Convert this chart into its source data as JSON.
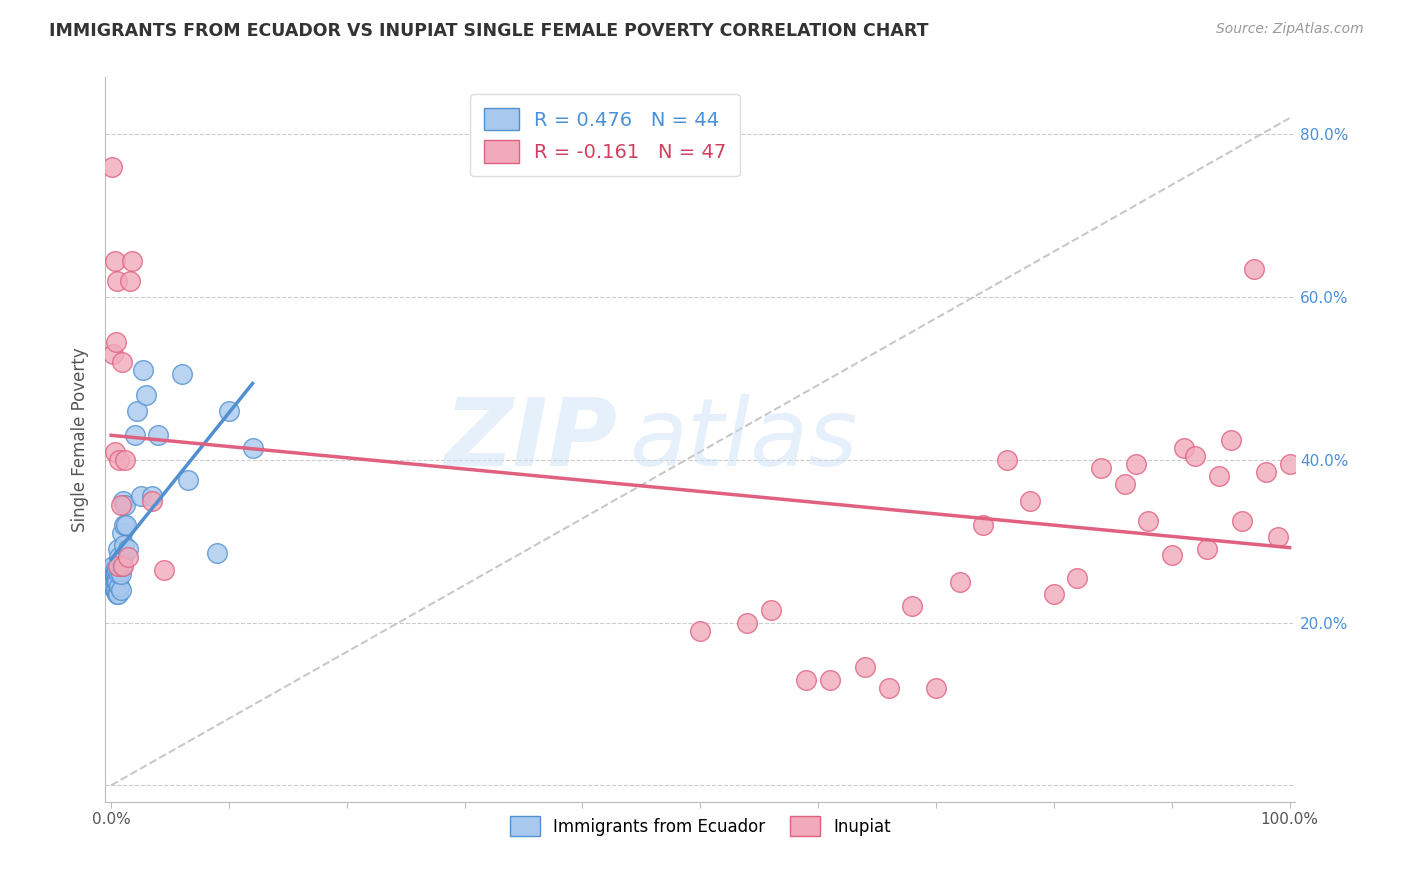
{
  "title": "IMMIGRANTS FROM ECUADOR VS INUPIAT SINGLE FEMALE POVERTY CORRELATION CHART",
  "source": "Source: ZipAtlas.com",
  "ylabel": "Single Female Poverty",
  "legend_label1": "Immigrants from Ecuador",
  "legend_label2": "Inupiat",
  "r1": 0.476,
  "n1": 44,
  "r2": -0.161,
  "n2": 47,
  "color_blue": "#A8C8EE",
  "color_pink": "#F0AABB",
  "color_blue_dark": "#5090D0",
  "color_pink_dark": "#E06080",
  "watermark_zip": "ZIP",
  "watermark_atlas": "atlas",
  "blue_scatter_x": [
    0.001,
    0.001,
    0.002,
    0.002,
    0.002,
    0.003,
    0.003,
    0.003,
    0.003,
    0.004,
    0.004,
    0.004,
    0.005,
    0.005,
    0.005,
    0.005,
    0.006,
    0.006,
    0.007,
    0.007,
    0.007,
    0.008,
    0.008,
    0.009,
    0.009,
    0.01,
    0.01,
    0.011,
    0.011,
    0.012,
    0.013,
    0.014,
    0.02,
    0.022,
    0.025,
    0.027,
    0.03,
    0.035,
    0.04,
    0.06,
    0.065,
    0.09,
    0.1,
    0.12
  ],
  "blue_scatter_y": [
    0.265,
    0.26,
    0.245,
    0.255,
    0.27,
    0.255,
    0.265,
    0.26,
    0.24,
    0.25,
    0.26,
    0.24,
    0.255,
    0.235,
    0.25,
    0.265,
    0.235,
    0.29,
    0.245,
    0.26,
    0.28,
    0.24,
    0.26,
    0.27,
    0.31,
    0.28,
    0.35,
    0.295,
    0.32,
    0.345,
    0.32,
    0.29,
    0.43,
    0.46,
    0.355,
    0.51,
    0.48,
    0.355,
    0.43,
    0.505,
    0.375,
    0.285,
    0.46,
    0.415
  ],
  "pink_scatter_x": [
    0.001,
    0.002,
    0.003,
    0.003,
    0.004,
    0.005,
    0.006,
    0.007,
    0.008,
    0.009,
    0.01,
    0.012,
    0.014,
    0.016,
    0.018,
    0.035,
    0.045,
    0.5,
    0.54,
    0.56,
    0.59,
    0.61,
    0.64,
    0.66,
    0.68,
    0.7,
    0.72,
    0.74,
    0.76,
    0.78,
    0.8,
    0.82,
    0.84,
    0.86,
    0.87,
    0.88,
    0.9,
    0.91,
    0.92,
    0.93,
    0.94,
    0.95,
    0.96,
    0.97,
    0.98,
    0.99,
    1.0
  ],
  "pink_scatter_y": [
    0.76,
    0.53,
    0.645,
    0.41,
    0.545,
    0.62,
    0.27,
    0.4,
    0.345,
    0.52,
    0.27,
    0.4,
    0.28,
    0.62,
    0.645,
    0.35,
    0.265,
    0.19,
    0.2,
    0.215,
    0.13,
    0.13,
    0.145,
    0.12,
    0.22,
    0.12,
    0.25,
    0.32,
    0.4,
    0.35,
    0.235,
    0.255,
    0.39,
    0.37,
    0.395,
    0.325,
    0.283,
    0.415,
    0.405,
    0.29,
    0.38,
    0.425,
    0.325,
    0.635,
    0.385,
    0.305,
    0.395
  ]
}
